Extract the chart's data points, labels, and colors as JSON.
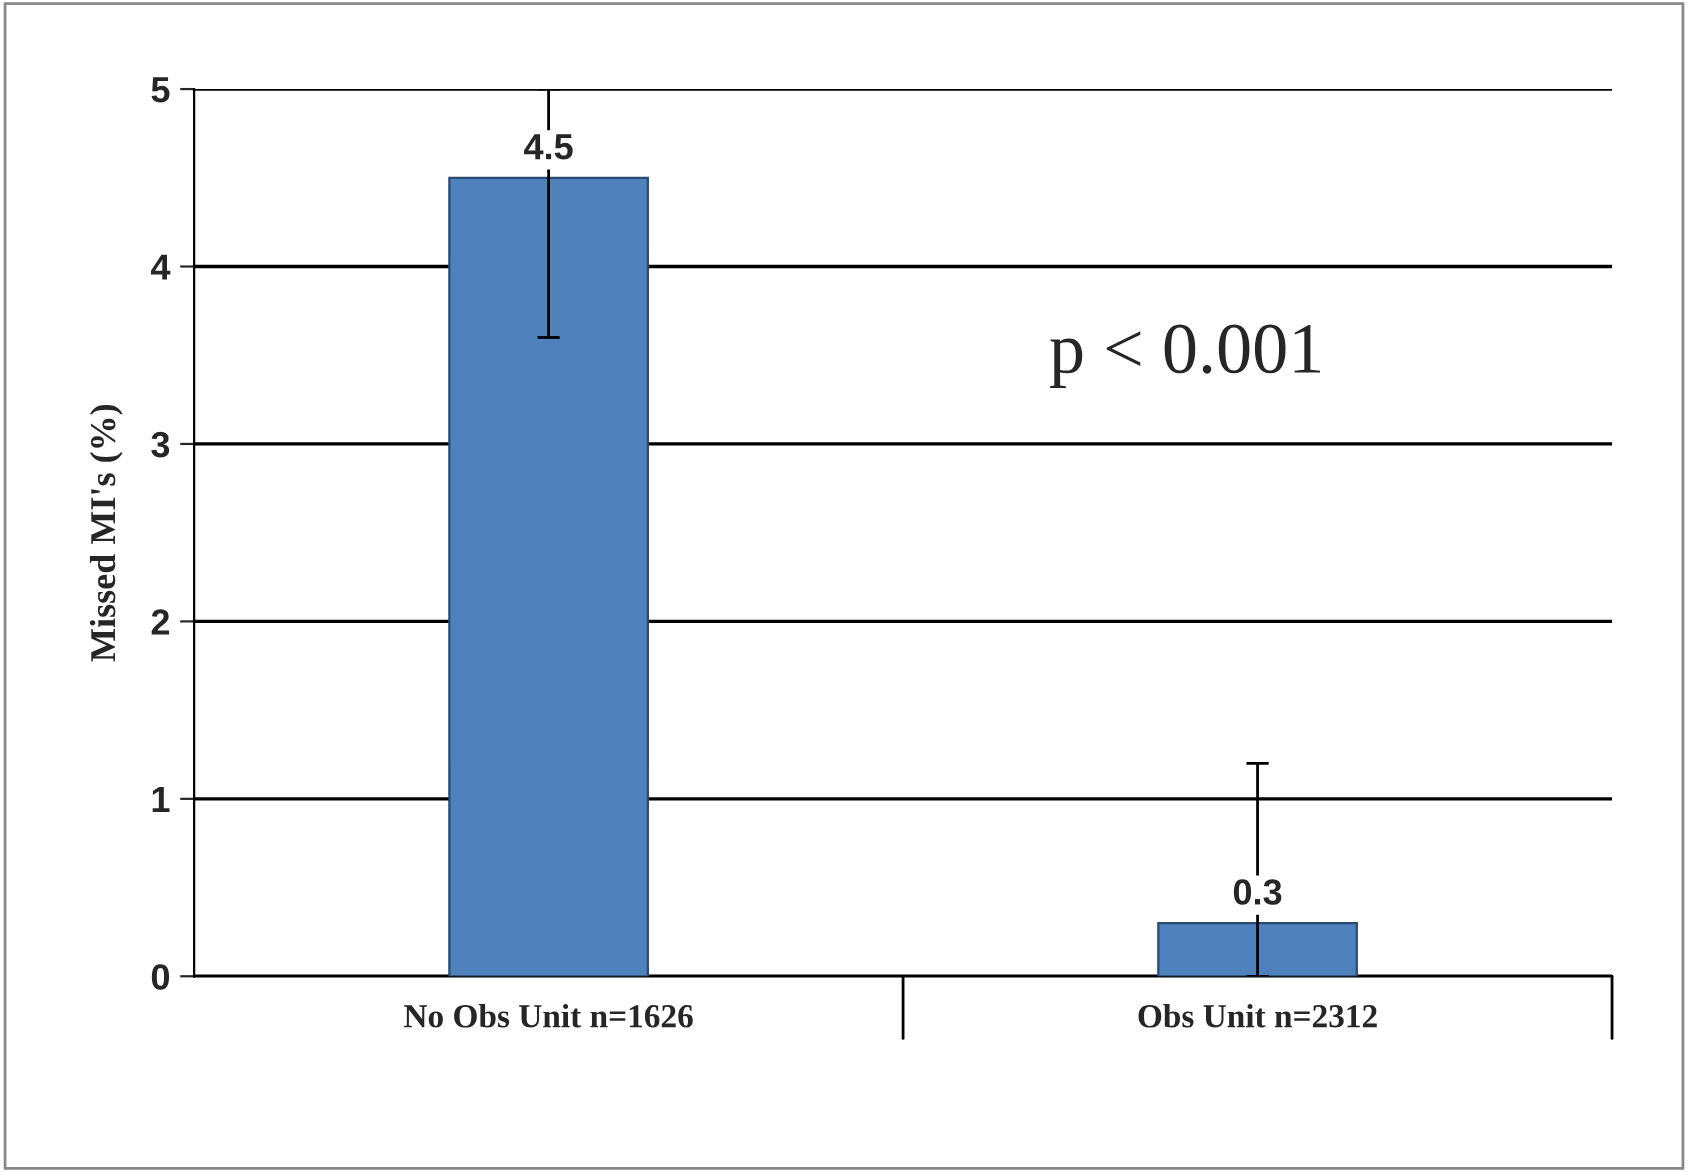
{
  "chart_data": {
    "type": "bar",
    "ylabel": "Missed MI's (%)",
    "categories": [
      "No Obs Unit n=1626",
      "Obs Unit n=2312"
    ],
    "values": [
      4.5,
      0.3
    ],
    "color": "#4f81bd",
    "errors": [
      [
        3.6,
        5.0
      ],
      [
        0,
        1.2
      ]
    ],
    "data_labels": true,
    "ylim": [
      0,
      5
    ],
    "yticks": [
      0,
      1,
      2,
      3,
      4,
      5
    ],
    "grid": "y",
    "annotations": [
      "p < 0.001"
    ]
  }
}
